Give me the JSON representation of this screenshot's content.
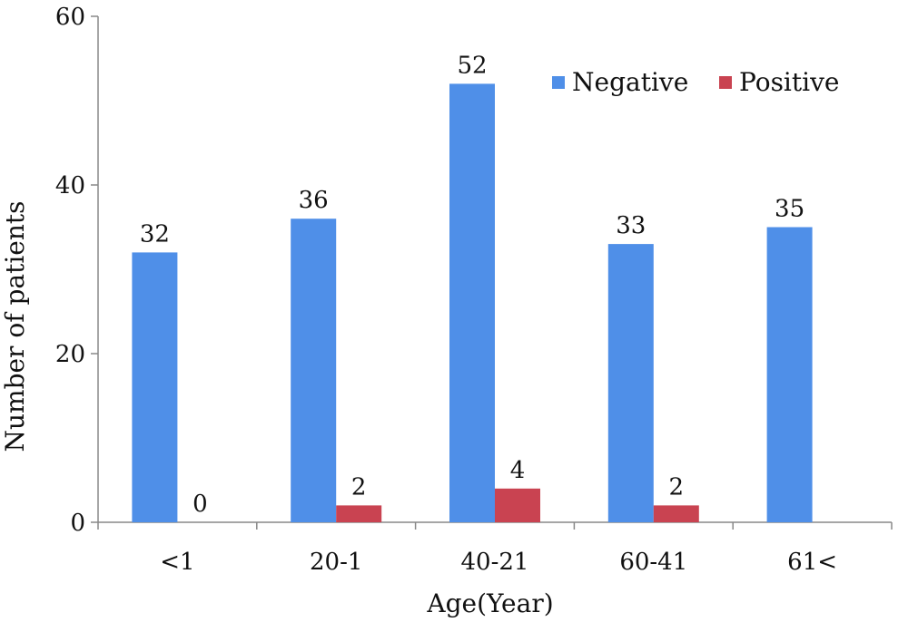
{
  "chart_data": {
    "type": "bar",
    "categories": [
      "<1",
      "20-1",
      "40-21",
      "60-41",
      "61<"
    ],
    "series": [
      {
        "name": "Negative",
        "values": [
          32,
          36,
          52,
          33,
          35
        ],
        "color": "#4f8fe8"
      },
      {
        "name": "Positive",
        "values": [
          0,
          2,
          4,
          2,
          null
        ],
        "color": "#c94351"
      }
    ],
    "data_labels": {
      "Negative": [
        "32",
        "36",
        "52",
        "33",
        "35"
      ],
      "Positive": [
        "0",
        "2",
        "4",
        "2",
        ""
      ]
    },
    "title": "",
    "xlabel": "Age(Year)",
    "ylabel": "Number of patients",
    "ylim": [
      0,
      60
    ],
    "yticks": [
      "0",
      "20",
      "40",
      "60"
    ],
    "grid": false,
    "legend": "top-right",
    "axis_color": "#888888"
  }
}
